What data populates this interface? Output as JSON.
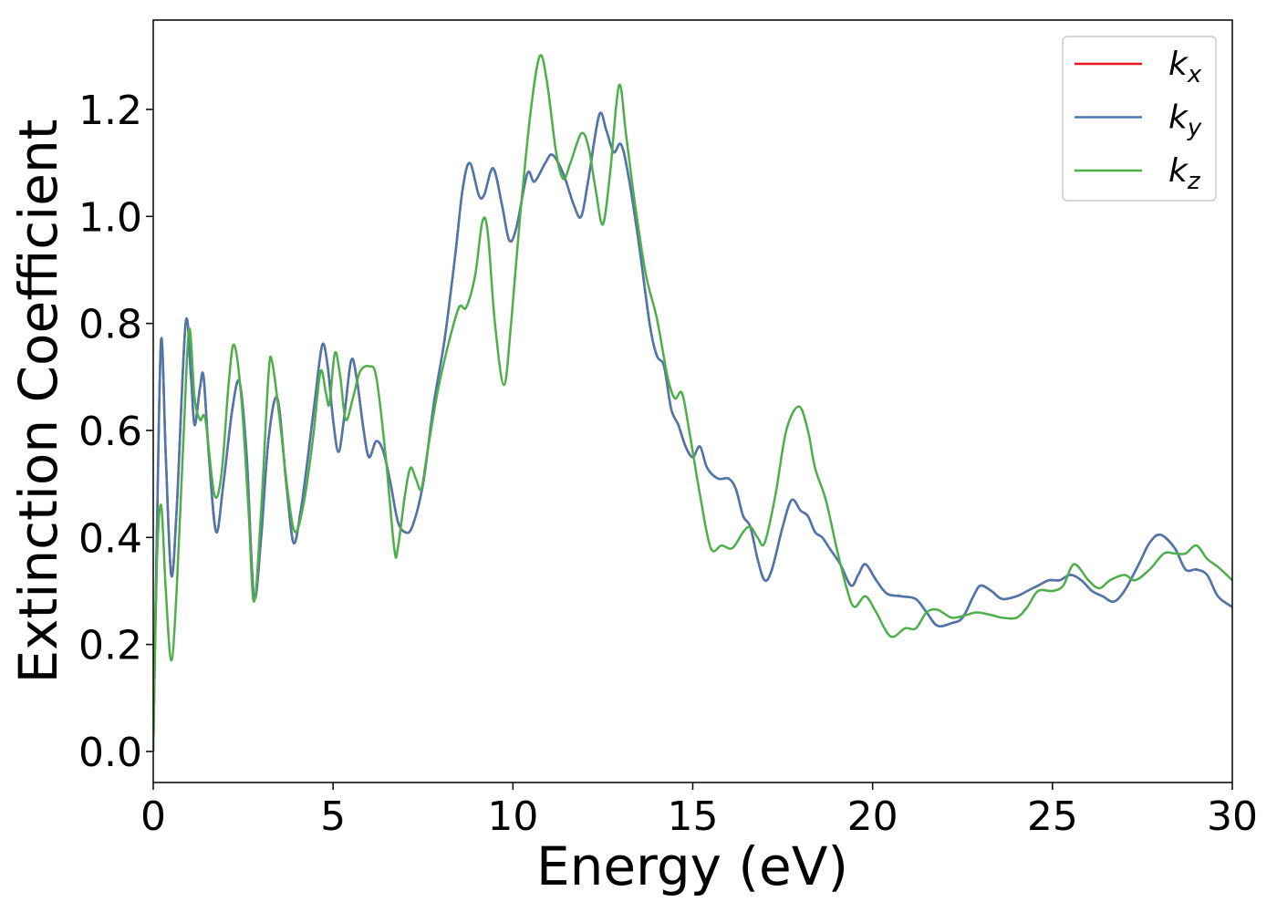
{
  "chart_data": {
    "type": "line",
    "xlabel": "Energy (eV)",
    "ylabel": "Extinction Coefficient",
    "xlim": [
      0,
      30
    ],
    "ylim": [
      -0.058,
      1.367
    ],
    "xticks": [
      0,
      5,
      10,
      15,
      20,
      25,
      30
    ],
    "yticks": [
      {
        "value": 0,
        "label": "0.0"
      },
      0.2,
      0.4,
      0.6,
      0.8,
      {
        "value": 1,
        "label": "1.0"
      },
      1.2
    ],
    "legend": "upper right",
    "series": [
      {
        "name": "kx",
        "color": "#e41a1c",
        "x": [
          0,
          0.1,
          0.22,
          0.35,
          0.5,
          0.65,
          0.9,
          1.05,
          1.15,
          1.3,
          1.4,
          1.55,
          1.75,
          1.95,
          2.2,
          2.4,
          2.6,
          2.8,
          3.0,
          3.2,
          3.45,
          3.7,
          3.9,
          4.1,
          4.3,
          4.5,
          4.7,
          4.85,
          5.0,
          5.15,
          5.3,
          5.5,
          5.65,
          5.85,
          6.0,
          6.2,
          6.4,
          6.6,
          6.8,
          7.0,
          7.2,
          7.5,
          7.8,
          8.1,
          8.4,
          8.6,
          8.8,
          9.05,
          9.2,
          9.45,
          9.7,
          9.9,
          10.1,
          10.4,
          10.6,
          10.9,
          11.1,
          11.4,
          11.7,
          11.9,
          12.1,
          12.4,
          12.6,
          12.8,
          13.0,
          13.2,
          13.5,
          13.8,
          14.0,
          14.2,
          14.4,
          14.6,
          14.8,
          15.0,
          15.2,
          15.4,
          15.7,
          16.0,
          16.2,
          16.4,
          16.6,
          16.8,
          17.0,
          17.2,
          17.5,
          17.75,
          18.0,
          18.2,
          18.4,
          18.6,
          18.8,
          19.1,
          19.4,
          19.6,
          19.8,
          20.1,
          20.4,
          20.8,
          21.2,
          21.5,
          21.8,
          22.2,
          22.5,
          22.8,
          23.0,
          23.3,
          23.6,
          24.0,
          24.3,
          24.6,
          24.9,
          25.2,
          25.5,
          25.8,
          26.1,
          26.4,
          26.7,
          27.0,
          27.4,
          27.7,
          28.0,
          28.4,
          28.7,
          29.0,
          29.3,
          29.6,
          30.0
        ],
        "values": [
          0,
          0.4,
          0.77,
          0.55,
          0.33,
          0.45,
          0.8,
          0.7,
          0.61,
          0.68,
          0.7,
          0.55,
          0.41,
          0.5,
          0.64,
          0.69,
          0.55,
          0.29,
          0.4,
          0.58,
          0.66,
          0.5,
          0.39,
          0.45,
          0.55,
          0.66,
          0.76,
          0.72,
          0.62,
          0.56,
          0.62,
          0.73,
          0.7,
          0.6,
          0.55,
          0.58,
          0.56,
          0.5,
          0.43,
          0.41,
          0.42,
          0.5,
          0.65,
          0.77,
          0.93,
          1.05,
          1.1,
          1.04,
          1.04,
          1.09,
          1.02,
          0.955,
          0.98,
          1.08,
          1.065,
          1.1,
          1.115,
          1.08,
          1.02,
          1.0,
          1.07,
          1.19,
          1.16,
          1.12,
          1.135,
          1.08,
          0.95,
          0.8,
          0.74,
          0.72,
          0.64,
          0.61,
          0.57,
          0.55,
          0.57,
          0.53,
          0.51,
          0.51,
          0.49,
          0.44,
          0.42,
          0.36,
          0.32,
          0.34,
          0.42,
          0.47,
          0.45,
          0.44,
          0.41,
          0.4,
          0.38,
          0.35,
          0.31,
          0.33,
          0.35,
          0.32,
          0.295,
          0.29,
          0.285,
          0.26,
          0.235,
          0.24,
          0.25,
          0.29,
          0.31,
          0.3,
          0.285,
          0.29,
          0.3,
          0.31,
          0.32,
          0.32,
          0.33,
          0.32,
          0.3,
          0.29,
          0.28,
          0.3,
          0.35,
          0.39,
          0.405,
          0.38,
          0.34,
          0.34,
          0.33,
          0.29,
          0.27
        ]
      },
      {
        "name": "ky",
        "color": "#4a78ad",
        "x": [
          0,
          0.1,
          0.22,
          0.35,
          0.5,
          0.65,
          0.9,
          1.05,
          1.15,
          1.3,
          1.4,
          1.55,
          1.75,
          1.95,
          2.2,
          2.4,
          2.6,
          2.8,
          3.0,
          3.2,
          3.45,
          3.7,
          3.9,
          4.1,
          4.3,
          4.5,
          4.7,
          4.85,
          5.0,
          5.15,
          5.3,
          5.5,
          5.65,
          5.85,
          6.0,
          6.2,
          6.4,
          6.6,
          6.8,
          7.0,
          7.2,
          7.5,
          7.8,
          8.1,
          8.4,
          8.6,
          8.8,
          9.05,
          9.2,
          9.45,
          9.7,
          9.9,
          10.1,
          10.4,
          10.6,
          10.9,
          11.1,
          11.4,
          11.7,
          11.9,
          12.1,
          12.4,
          12.6,
          12.8,
          13.0,
          13.2,
          13.5,
          13.8,
          14.0,
          14.2,
          14.4,
          14.6,
          14.8,
          15.0,
          15.2,
          15.4,
          15.7,
          16.0,
          16.2,
          16.4,
          16.6,
          16.8,
          17.0,
          17.2,
          17.5,
          17.75,
          18.0,
          18.2,
          18.4,
          18.6,
          18.8,
          19.1,
          19.4,
          19.6,
          19.8,
          20.1,
          20.4,
          20.8,
          21.2,
          21.5,
          21.8,
          22.2,
          22.5,
          22.8,
          23.0,
          23.3,
          23.6,
          24.0,
          24.3,
          24.6,
          24.9,
          25.2,
          25.5,
          25.8,
          26.1,
          26.4,
          26.7,
          27.0,
          27.4,
          27.7,
          28.0,
          28.4,
          28.7,
          29.0,
          29.3,
          29.6,
          30.0
        ],
        "values": [
          0,
          0.4,
          0.77,
          0.55,
          0.33,
          0.45,
          0.8,
          0.7,
          0.61,
          0.68,
          0.7,
          0.55,
          0.41,
          0.5,
          0.64,
          0.69,
          0.55,
          0.29,
          0.4,
          0.58,
          0.66,
          0.5,
          0.39,
          0.45,
          0.55,
          0.66,
          0.76,
          0.72,
          0.62,
          0.56,
          0.62,
          0.73,
          0.7,
          0.6,
          0.55,
          0.58,
          0.56,
          0.5,
          0.43,
          0.41,
          0.42,
          0.5,
          0.65,
          0.77,
          0.93,
          1.05,
          1.1,
          1.04,
          1.04,
          1.09,
          1.02,
          0.955,
          0.98,
          1.08,
          1.065,
          1.1,
          1.115,
          1.08,
          1.02,
          1.0,
          1.07,
          1.19,
          1.16,
          1.12,
          1.135,
          1.08,
          0.95,
          0.8,
          0.74,
          0.72,
          0.64,
          0.61,
          0.57,
          0.55,
          0.57,
          0.53,
          0.51,
          0.51,
          0.49,
          0.44,
          0.42,
          0.36,
          0.32,
          0.34,
          0.42,
          0.47,
          0.45,
          0.44,
          0.41,
          0.4,
          0.38,
          0.35,
          0.31,
          0.33,
          0.35,
          0.32,
          0.295,
          0.29,
          0.285,
          0.26,
          0.235,
          0.24,
          0.25,
          0.29,
          0.31,
          0.3,
          0.285,
          0.29,
          0.3,
          0.31,
          0.32,
          0.32,
          0.33,
          0.32,
          0.3,
          0.29,
          0.28,
          0.3,
          0.35,
          0.39,
          0.405,
          0.38,
          0.34,
          0.34,
          0.33,
          0.29,
          0.27
        ]
      },
      {
        "name": "kz",
        "color": "#4daf4a",
        "x": [
          0,
          0.1,
          0.22,
          0.35,
          0.5,
          0.65,
          0.85,
          1.0,
          1.15,
          1.3,
          1.45,
          1.7,
          1.9,
          2.1,
          2.25,
          2.45,
          2.65,
          2.8,
          3.0,
          3.2,
          3.3,
          3.5,
          3.75,
          3.95,
          4.2,
          4.45,
          4.65,
          4.8,
          4.9,
          5.05,
          5.2,
          5.35,
          5.55,
          5.75,
          6.0,
          6.2,
          6.45,
          6.7,
          6.8,
          7.0,
          7.15,
          7.3,
          7.45,
          7.6,
          7.9,
          8.2,
          8.5,
          8.7,
          8.95,
          9.15,
          9.3,
          9.5,
          9.75,
          9.95,
          10.2,
          10.5,
          10.75,
          10.95,
          11.2,
          11.4,
          11.6,
          11.9,
          12.1,
          12.3,
          12.5,
          12.7,
          12.95,
          13.15,
          13.4,
          13.7,
          14.0,
          14.3,
          14.5,
          14.7,
          14.9,
          15.2,
          15.5,
          15.8,
          16.1,
          16.4,
          16.6,
          16.8,
          17.0,
          17.3,
          17.6,
          17.95,
          18.2,
          18.4,
          18.7,
          19.0,
          19.3,
          19.5,
          19.8,
          20.1,
          20.5,
          20.9,
          21.2,
          21.5,
          21.8,
          22.2,
          22.6,
          22.9,
          23.3,
          23.6,
          24.0,
          24.3,
          24.6,
          25.0,
          25.3,
          25.6,
          26.0,
          26.3,
          26.6,
          27.0,
          27.3,
          27.7,
          28.1,
          28.4,
          28.7,
          29.0,
          29.3,
          29.6,
          30.0
        ],
        "values": [
          0,
          0.35,
          0.46,
          0.3,
          0.17,
          0.3,
          0.6,
          0.79,
          0.66,
          0.62,
          0.62,
          0.48,
          0.52,
          0.69,
          0.76,
          0.66,
          0.45,
          0.28,
          0.45,
          0.7,
          0.73,
          0.63,
          0.48,
          0.41,
          0.47,
          0.59,
          0.71,
          0.67,
          0.65,
          0.745,
          0.7,
          0.62,
          0.66,
          0.71,
          0.72,
          0.7,
          0.56,
          0.38,
          0.38,
          0.48,
          0.53,
          0.51,
          0.49,
          0.55,
          0.67,
          0.76,
          0.83,
          0.83,
          0.89,
          0.99,
          0.97,
          0.8,
          0.685,
          0.8,
          1.0,
          1.2,
          1.3,
          1.25,
          1.12,
          1.07,
          1.1,
          1.155,
          1.13,
          1.05,
          0.985,
          1.08,
          1.245,
          1.15,
          1.02,
          0.89,
          0.81,
          0.7,
          0.66,
          0.67,
          0.6,
          0.48,
          0.38,
          0.385,
          0.38,
          0.41,
          0.42,
          0.4,
          0.39,
          0.48,
          0.6,
          0.645,
          0.6,
          0.53,
          0.47,
          0.38,
          0.3,
          0.27,
          0.29,
          0.26,
          0.215,
          0.23,
          0.23,
          0.26,
          0.265,
          0.25,
          0.255,
          0.26,
          0.255,
          0.25,
          0.25,
          0.27,
          0.3,
          0.3,
          0.31,
          0.35,
          0.32,
          0.305,
          0.32,
          0.33,
          0.32,
          0.34,
          0.37,
          0.37,
          0.37,
          0.385,
          0.36,
          0.345,
          0.32
        ]
      }
    ]
  }
}
